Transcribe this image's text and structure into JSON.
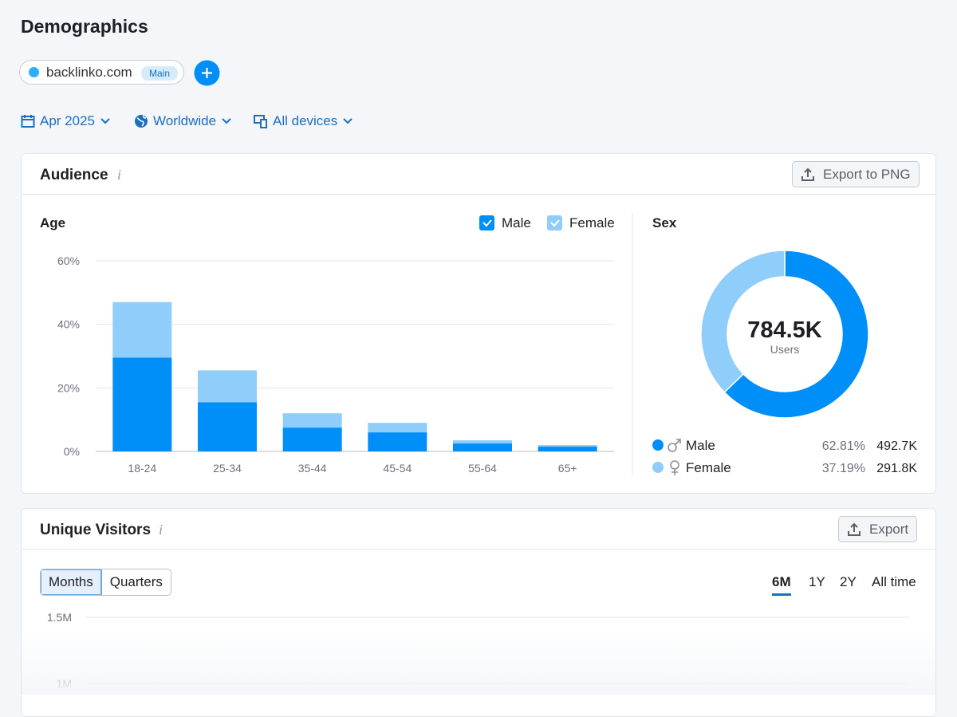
{
  "header": {
    "title": "Demographics",
    "domain": "backlinko.com",
    "domain_tag": "Main"
  },
  "filters": [
    "Apr 2025",
    "Worldwide",
    "All devices"
  ],
  "audience": {
    "title": "Audience",
    "export": "Export to PNG",
    "age": {
      "type": "bar",
      "stacked": true,
      "title": "Age",
      "categories": [
        "18-24",
        "25-34",
        "35-44",
        "45-54",
        "55-64",
        "65+"
      ],
      "series": [
        {
          "name": "Male",
          "color": "#008ff8",
          "values": [
            29.5,
            15.5,
            7.5,
            6,
            2.5,
            1.5
          ]
        },
        {
          "name": "Female",
          "color": "#8fcdfb",
          "values": [
            17.5,
            10,
            4.5,
            3,
            1,
            0.5
          ]
        }
      ],
      "ylim": [
        0,
        60
      ],
      "yticks": [
        {
          "value": 0,
          "label": "0%"
        },
        {
          "value": 20,
          "label": "20%"
        },
        {
          "value": 40,
          "label": "40%"
        },
        {
          "value": 60,
          "label": "60%"
        }
      ],
      "grid": true
    },
    "sex": {
      "type": "donut",
      "title": "Sex",
      "total": 784500,
      "total_label": "784.5K",
      "total_caption": "Users",
      "categories": [
        "Male",
        "Female"
      ],
      "values": [
        62.81,
        37.19
      ],
      "value_labels": [
        "62.81%",
        "37.19%"
      ],
      "counts": [
        492700,
        291800
      ],
      "count_labels": [
        "492.7K",
        "291.8K"
      ],
      "colors": [
        "#008ff8",
        "#8fcdfb"
      ]
    }
  },
  "unique_visitors": {
    "title": "Unique Visitors",
    "export": "Export",
    "granularity": [
      "Months",
      "Quarters"
    ],
    "ranges": [
      "6M",
      "1Y",
      "2Y",
      "All time"
    ],
    "chart": {
      "type": "line",
      "ylim": [
        1000000,
        1500000
      ],
      "yticks": [
        {
          "value": 1500000,
          "label": "1.5M"
        },
        {
          "value": 1000000,
          "label": "1M"
        }
      ],
      "grid": true
    }
  }
}
